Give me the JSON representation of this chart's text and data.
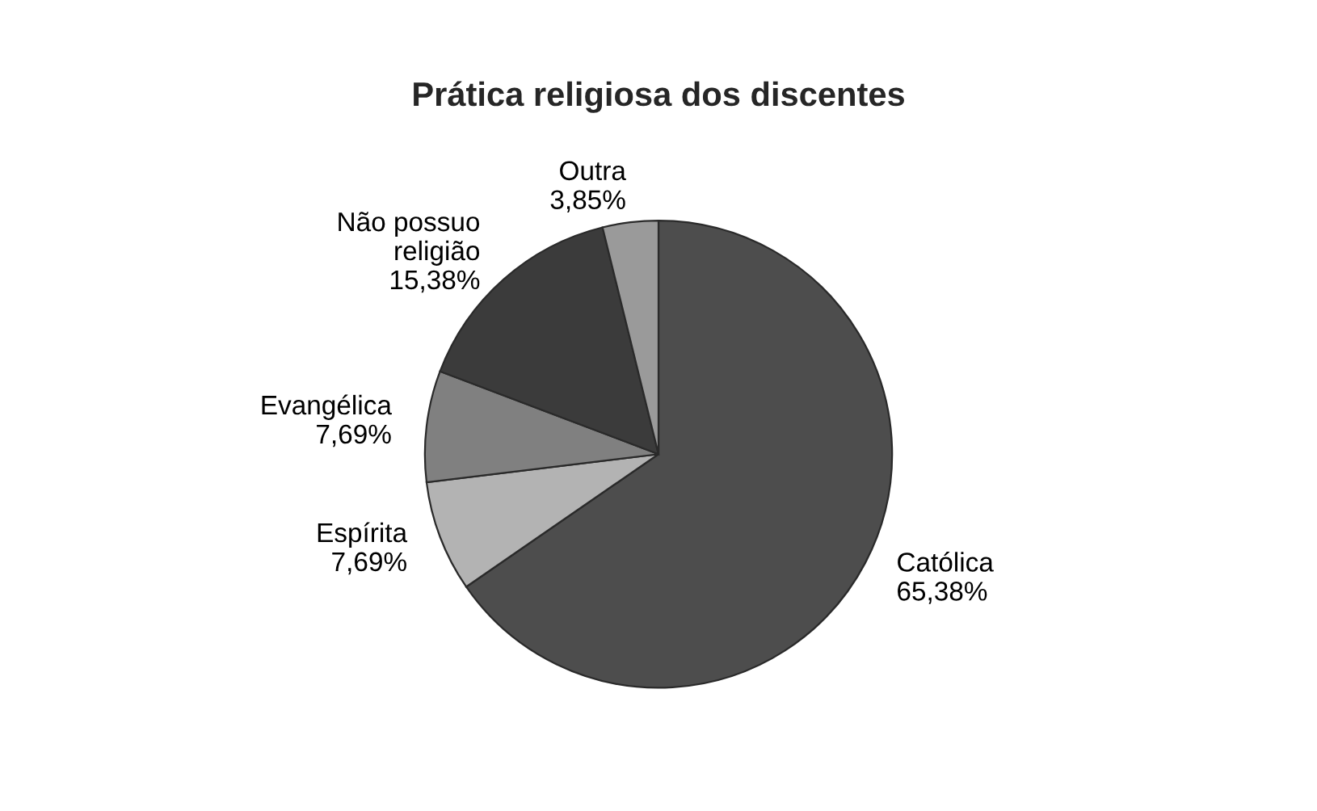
{
  "chart_data": {
    "type": "pie",
    "title": "Prática religiosa dos discentes",
    "categories": [
      "Católica",
      "Espírita",
      "Evangélica",
      "Não possuo\nreligião",
      "Outra"
    ],
    "values": [
      65.38,
      7.69,
      7.69,
      15.38,
      3.85
    ],
    "value_labels": [
      "65,38%",
      "7,69%",
      "7,69%",
      "15,38%",
      "3,85%"
    ],
    "colors": [
      "#4d4d4d",
      "#b3b3b3",
      "#808080",
      "#3b3b3b",
      "#9a9a9a"
    ],
    "legend": false
  }
}
